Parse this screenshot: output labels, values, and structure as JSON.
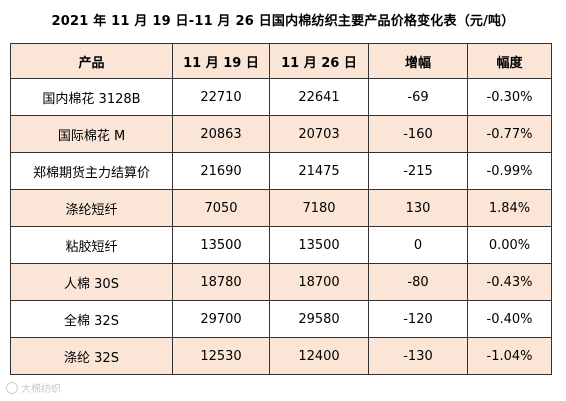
{
  "title": "2021 年 11 月 19 日-11 月 26 日国内棉纺织主要产品价格变化表（元/吨）",
  "table": {
    "headers": [
      "产品",
      "11 月 19 日",
      "11 月 26 日",
      "增幅",
      "幅度"
    ],
    "rows": [
      [
        "国内棉花 3128B",
        "22710",
        "22641",
        "-69",
        "-0.30%"
      ],
      [
        "国际棉花 M",
        "20863",
        "20703",
        "-160",
        "-0.77%"
      ],
      [
        "郑棉期货主力结算价",
        "21690",
        "21475",
        "-215",
        "-0.99%"
      ],
      [
        "涤纶短纤",
        "7050",
        "7180",
        "130",
        "1.84%"
      ],
      [
        "粘胶短纤",
        "13500",
        "13500",
        "0",
        "0.00%"
      ],
      [
        "人棉 30S",
        "18780",
        "18700",
        "-80",
        "-0.43%"
      ],
      [
        "全棉 32S",
        "29700",
        "29580",
        "-120",
        "-0.40%"
      ],
      [
        "涤纶 32S",
        "12530",
        "12400",
        "-130",
        "-1.04%"
      ]
    ]
  },
  "watermark": {
    "text": "大棉纺织",
    "icon": "logo-icon"
  },
  "colors": {
    "shaded_row": "#fbe5d6",
    "border": "#333333"
  }
}
